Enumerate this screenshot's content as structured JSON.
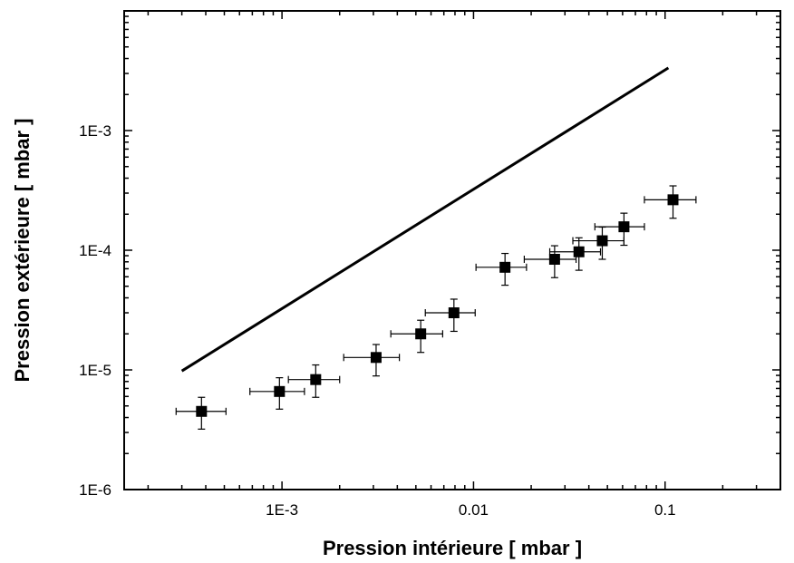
{
  "chart_data": {
    "type": "scatter",
    "xlabel": "Pression intérieure [ mbar ]",
    "ylabel": "Pression extérieure [ mbar ]",
    "x_scale": "log",
    "y_scale": "log",
    "xlim": [
      0.00015,
      0.4
    ],
    "ylim": [
      1e-06,
      0.01
    ],
    "x_ticks": [
      {
        "value": 0.001,
        "label": "1E-3"
      },
      {
        "value": 0.01,
        "label": "0.01"
      },
      {
        "value": 0.1,
        "label": "0.1"
      }
    ],
    "y_ticks": [
      {
        "value": 1e-06,
        "label": "1E-6"
      },
      {
        "value": 1e-05,
        "label": "1E-5"
      },
      {
        "value": 0.0001,
        "label": "1E-4"
      },
      {
        "value": 0.001,
        "label": "1E-3"
      }
    ],
    "grid": false,
    "colors": {
      "marks": "#000000",
      "background": "#ffffff"
    },
    "series": [
      {
        "type": "line",
        "points": [
          [
            0.0003,
            9.8e-06
          ],
          [
            0.104,
            0.00334
          ]
        ]
      },
      {
        "type": "scatter",
        "marker": "square",
        "points": [
          {
            "x": 0.00038,
            "y": 4.5e-06,
            "xlo": 0.00028,
            "xhi": 0.00051,
            "ylo": 3.2e-06,
            "yhi": 5.9e-06
          },
          {
            "x": 0.00097,
            "y": 6.6e-06,
            "xlo": 0.00068,
            "xhi": 0.00131,
            "ylo": 4.7e-06,
            "yhi": 8.6e-06
          },
          {
            "x": 0.0015,
            "y": 8.3e-06,
            "xlo": 0.00108,
            "xhi": 0.002,
            "ylo": 5.9e-06,
            "yhi": 1.1e-05
          },
          {
            "x": 0.0031,
            "y": 1.27e-05,
            "xlo": 0.0021,
            "xhi": 0.0041,
            "ylo": 8.9e-06,
            "yhi": 1.63e-05
          },
          {
            "x": 0.0053,
            "y": 2e-05,
            "xlo": 0.0037,
            "xhi": 0.0069,
            "ylo": 1.4e-05,
            "yhi": 2.6e-05
          },
          {
            "x": 0.0079,
            "y": 3e-05,
            "xlo": 0.0056,
            "xhi": 0.0102,
            "ylo": 2.1e-05,
            "yhi": 3.9e-05
          },
          {
            "x": 0.0146,
            "y": 7.2e-05,
            "xlo": 0.0103,
            "xhi": 0.0189,
            "ylo": 5.1e-05,
            "yhi": 9.4e-05
          },
          {
            "x": 0.0265,
            "y": 8.4e-05,
            "xlo": 0.0184,
            "xhi": 0.0343,
            "ylo": 5.9e-05,
            "yhi": 0.000109
          },
          {
            "x": 0.0355,
            "y": 9.7e-05,
            "xlo": 0.025,
            "xhi": 0.046,
            "ylo": 6.8e-05,
            "yhi": 0.000127
          },
          {
            "x": 0.047,
            "y": 0.00012,
            "xlo": 0.033,
            "xhi": 0.061,
            "ylo": 8.4e-05,
            "yhi": 0.000156
          },
          {
            "x": 0.061,
            "y": 0.000157,
            "xlo": 0.043,
            "xhi": 0.078,
            "ylo": 0.00011,
            "yhi": 0.000204
          },
          {
            "x": 0.11,
            "y": 0.000264,
            "xlo": 0.078,
            "xhi": 0.145,
            "ylo": 0.000185,
            "yhi": 0.000345
          }
        ]
      }
    ]
  }
}
